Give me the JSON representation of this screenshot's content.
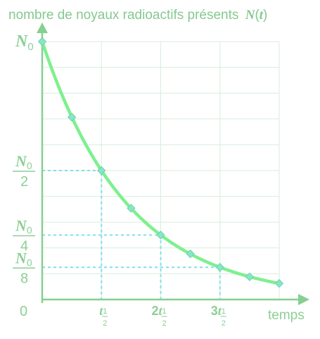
{
  "chart_data": {
    "type": "line",
    "title": "nombre de noyaux radioactifs présents",
    "title_symbol": "N",
    "title_symbol_arg": "t",
    "xlabel": "temps",
    "origin_label": "0",
    "y_max_label": {
      "symbol": "N",
      "sub": "0"
    },
    "y_fraction_ticks": [
      {
        "value": 0.5,
        "num": "N",
        "num_sub": "0",
        "den": "2"
      },
      {
        "value": 0.25,
        "num": "N",
        "num_sub": "0",
        "den": "4"
      },
      {
        "value": 0.125,
        "num": "N",
        "num_sub": "0",
        "den": "8"
      }
    ],
    "x_ticks": [
      {
        "value": 1,
        "coef": "",
        "symbol": "t",
        "frac_num": "1",
        "frac_den": "2"
      },
      {
        "value": 2,
        "coef": "2",
        "symbol": "t",
        "frac_num": "1",
        "frac_den": "2"
      },
      {
        "value": 3,
        "coef": "3",
        "symbol": "t",
        "frac_num": "1",
        "frac_den": "2"
      }
    ],
    "x_unit": "t½",
    "y_unit": "N0",
    "xlim": [
      0,
      4
    ],
    "ylim": [
      0,
      1
    ],
    "series": [
      {
        "x": [
          0,
          0.5,
          1,
          1.5,
          2,
          2.5,
          3,
          3.5,
          4
        ],
        "y": [
          1,
          0.707,
          0.5,
          0.354,
          0.25,
          0.177,
          0.125,
          0.088,
          0.0625
        ]
      }
    ],
    "grid": true,
    "colors": {
      "curve": "#7ef08f",
      "guides": "#7fe0ea",
      "axes": "#86cf90",
      "text": "#8ccf95"
    }
  }
}
